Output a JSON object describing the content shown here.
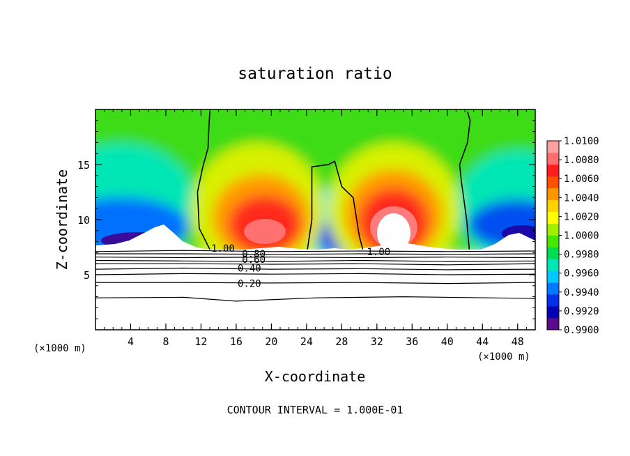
{
  "chart_data": {
    "type": "heatmap",
    "title": "saturation ratio",
    "xlabel": "X-coordinate",
    "ylabel": "Z-coordinate",
    "x_unit_left": "(×1000 m)",
    "x_unit_right": "(×1000 m)",
    "footer": "CONTOUR INTERVAL = 1.000E-01",
    "xlim": [
      0,
      50
    ],
    "ylim": [
      0,
      20
    ],
    "x_ticks": [
      4,
      8,
      12,
      16,
      20,
      24,
      28,
      32,
      36,
      40,
      44,
      48
    ],
    "x_minor_step": 1,
    "y_ticks": [
      5,
      10,
      15
    ],
    "y_minor_step": 1,
    "colorbar": {
      "levels": [
        0.99,
        0.992,
        0.994,
        0.996,
        0.998,
        1.0,
        1.002,
        1.004,
        1.006,
        1.008,
        1.01
      ],
      "labels": [
        "0.9900",
        "0.9920",
        "0.9940",
        "0.9960",
        "0.9980",
        "1.0000",
        "1.0020",
        "1.0040",
        "1.0060",
        "1.0080",
        "1.0100"
      ],
      "colors": [
        "#5b0a8c",
        "#0000b4",
        "#0030e8",
        "#0078ff",
        "#00c8ff",
        "#00e6b4",
        "#00dc50",
        "#46e600",
        "#a0f000",
        "#ffff00",
        "#ffd200",
        "#ff9600",
        "#ff5000",
        "#ff1e1e",
        "#ff6e6e",
        "#ffa0a0"
      ]
    },
    "contour_labels": [
      {
        "text": "1.00",
        "x": 14.5,
        "z": 7.4
      },
      {
        "text": "1.00",
        "x": 32.2,
        "z": 7.1
      },
      {
        "text": "0.80",
        "x": 18.0,
        "z": 6.9
      },
      {
        "text": "0.60",
        "x": 18.0,
        "z": 6.4
      },
      {
        "text": "0.40",
        "x": 17.5,
        "z": 5.6
      },
      {
        "text": "0.20",
        "x": 17.5,
        "z": 4.2
      }
    ],
    "contour_lines_subsaturated": [
      [
        [
          0,
          7.1
        ],
        [
          10,
          7.2
        ],
        [
          20,
          7.1
        ],
        [
          30,
          7.15
        ],
        [
          40,
          7.1
        ],
        [
          50,
          7.15
        ]
      ],
      [
        [
          0,
          6.9
        ],
        [
          10,
          6.9
        ],
        [
          20,
          6.85
        ],
        [
          30,
          6.9
        ],
        [
          40,
          6.85
        ],
        [
          50,
          6.9
        ]
      ],
      [
        [
          0,
          6.6
        ],
        [
          10,
          6.55
        ],
        [
          20,
          6.6
        ],
        [
          30,
          6.55
        ],
        [
          40,
          6.6
        ],
        [
          50,
          6.55
        ]
      ],
      [
        [
          0,
          6.3
        ],
        [
          10,
          6.25
        ],
        [
          20,
          6.2
        ],
        [
          30,
          6.3
        ],
        [
          40,
          6.2
        ],
        [
          50,
          6.25
        ]
      ],
      [
        [
          0,
          6.0
        ],
        [
          10,
          6.0
        ],
        [
          20,
          5.95
        ],
        [
          30,
          6.0
        ],
        [
          40,
          5.9
        ],
        [
          50,
          6.0
        ]
      ],
      [
        [
          0,
          5.5
        ],
        [
          10,
          5.6
        ],
        [
          20,
          5.5
        ],
        [
          30,
          5.55
        ],
        [
          40,
          5.45
        ],
        [
          50,
          5.5
        ]
      ],
      [
        [
          0,
          5.0
        ],
        [
          10,
          5.1
        ],
        [
          20,
          5.05
        ],
        [
          30,
          5.1
        ],
        [
          40,
          5.0
        ],
        [
          50,
          5.05
        ]
      ],
      [
        [
          0,
          4.3
        ],
        [
          10,
          4.3
        ],
        [
          20,
          4.25
        ],
        [
          30,
          4.3
        ],
        [
          40,
          4.2
        ],
        [
          50,
          4.3
        ]
      ],
      [
        [
          0,
          2.9
        ],
        [
          10,
          2.95
        ],
        [
          16,
          2.6
        ],
        [
          25,
          2.9
        ],
        [
          35,
          3.0
        ],
        [
          50,
          2.85
        ]
      ]
    ],
    "contour_lines_saturation": [
      [
        [
          13.0,
          7.3
        ],
        [
          11.8,
          9.2
        ],
        [
          11.6,
          12.5
        ],
        [
          12.2,
          14.8
        ],
        [
          12.8,
          16.5
        ],
        [
          12.9,
          18.5
        ],
        [
          13.0,
          19.8
        ]
      ],
      [
        [
          24.1,
          7.3
        ],
        [
          24.6,
          10.0
        ],
        [
          24.6,
          14.8
        ],
        [
          26.5,
          15.0
        ],
        [
          27.2,
          15.3
        ],
        [
          28.0,
          13.0
        ],
        [
          29.3,
          12.0
        ],
        [
          30.0,
          8.5
        ],
        [
          30.4,
          7.3
        ]
      ],
      [
        [
          42.5,
          7.3
        ],
        [
          42.2,
          10.0
        ],
        [
          41.6,
          13.5
        ],
        [
          41.4,
          15.0
        ],
        [
          42.3,
          17.0
        ],
        [
          42.6,
          19.0
        ],
        [
          42.3,
          19.8
        ]
      ]
    ]
  }
}
